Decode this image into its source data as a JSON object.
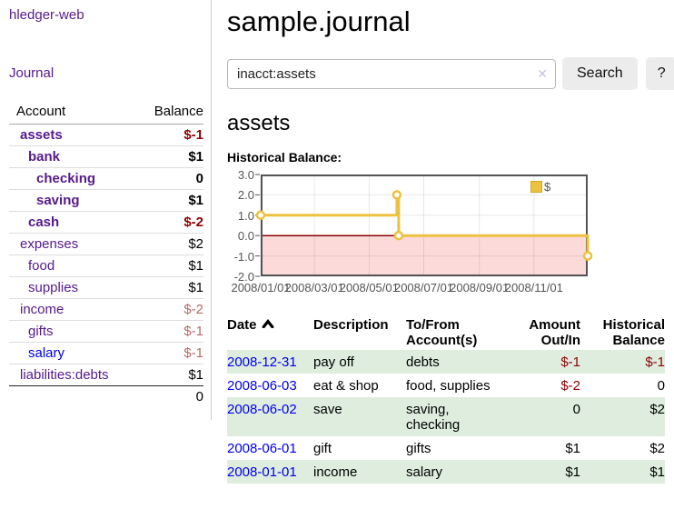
{
  "sidebar": {
    "app_title": "hledger-web",
    "journal_label": "Journal",
    "table": {
      "account_header": "Account",
      "balance_header": "Balance"
    },
    "accounts": [
      {
        "name": "assets",
        "level": 1,
        "balance": "$-1",
        "bold": true,
        "negative": "strong",
        "link_color": "purple"
      },
      {
        "name": "bank",
        "level": 2,
        "balance": "$1",
        "bold": true,
        "negative": "none",
        "link_color": "purple"
      },
      {
        "name": "checking",
        "level": 3,
        "balance": "0",
        "bold": true,
        "negative": "none",
        "link_color": "purple"
      },
      {
        "name": "saving",
        "level": 3,
        "balance": "$1",
        "bold": true,
        "negative": "none",
        "link_color": "purple"
      },
      {
        "name": "cash",
        "level": 2,
        "balance": "$-2",
        "bold": true,
        "negative": "strong",
        "link_color": "purple"
      },
      {
        "name": "expenses",
        "level": 1,
        "balance": "$2",
        "bold": false,
        "negative": "none",
        "link_color": "purple"
      },
      {
        "name": "food",
        "level": 2,
        "balance": "$1",
        "bold": false,
        "negative": "none",
        "link_color": "purple"
      },
      {
        "name": "supplies",
        "level": 2,
        "balance": "$1",
        "bold": false,
        "negative": "none",
        "link_color": "purple"
      },
      {
        "name": "income",
        "level": 1,
        "balance": "$-2",
        "bold": false,
        "negative": "muted",
        "link_color": "purple"
      },
      {
        "name": "gifts",
        "level": 2,
        "balance": "$-1",
        "bold": false,
        "negative": "muted",
        "link_color": "purple"
      },
      {
        "name": "salary",
        "level": 2,
        "balance": "$-1",
        "bold": false,
        "negative": "muted",
        "link_color": "blue"
      },
      {
        "name": "liabilities:debts",
        "level": 1,
        "balance": "$1",
        "bold": false,
        "negative": "none",
        "link_color": "purple"
      }
    ],
    "total_balance": "0"
  },
  "header": {
    "title": "sample.journal"
  },
  "search": {
    "value": "inacct:assets",
    "clear_icon": "✕",
    "button_label": "Search",
    "help_label": "?"
  },
  "account_page": {
    "heading": "assets",
    "chart_title": "Historical Balance:"
  },
  "chart_data": {
    "type": "line",
    "step": true,
    "title": "Historical Balance:",
    "x_unit": "days since 2008-01-01",
    "xlim": [
      0,
      365
    ],
    "ylim": [
      -2,
      3
    ],
    "grid": true,
    "legend_position": "top-right",
    "series": [
      {
        "name": "$",
        "color": "#edc240",
        "points": [
          {
            "date": "2008-01-01",
            "x": 0,
            "y": 1
          },
          {
            "date": "2008-06-01",
            "x": 152,
            "y": 2
          },
          {
            "date": "2008-06-03",
            "x": 154,
            "y": 0
          },
          {
            "date": "2008-12-31",
            "x": 365,
            "y": -1
          }
        ]
      }
    ],
    "x_ticks": [
      {
        "pos": 0,
        "label": "2008/01/01"
      },
      {
        "pos": 60,
        "label": "2008/03/01"
      },
      {
        "pos": 121,
        "label": "2008/05/01"
      },
      {
        "pos": 182,
        "label": "2008/07/01"
      },
      {
        "pos": 244,
        "label": "2008/09/01"
      },
      {
        "pos": 305,
        "label": "2008/11/01"
      }
    ],
    "y_ticks": [
      {
        "pos": 3,
        "label": "3.0"
      },
      {
        "pos": 2,
        "label": "2.0"
      },
      {
        "pos": 1,
        "label": "1.0"
      },
      {
        "pos": 0,
        "label": "0.0"
      },
      {
        "pos": -1,
        "label": "-1.0"
      },
      {
        "pos": -2,
        "label": "-2.0"
      }
    ],
    "negative_region_color": "#fcdada",
    "zero_line_color": "#8b0000"
  },
  "register": {
    "columns": {
      "date": "Date",
      "description": "Description",
      "account": "To/From Account(s)",
      "amount": "Amount Out/In",
      "balance": "Historical Balance"
    },
    "rows": [
      {
        "date": "2008-12-31",
        "description": "pay off",
        "account": "debts",
        "amount": "$-1",
        "amount_negative": true,
        "balance": "$-1",
        "balance_negative": true,
        "shaded": true
      },
      {
        "date": "2008-06-03",
        "description": "eat & shop",
        "account": "food, supplies",
        "amount": "$-2",
        "amount_negative": true,
        "balance": "0",
        "balance_negative": false,
        "shaded": false
      },
      {
        "date": "2008-06-02",
        "description": "save",
        "account": "saving, checking",
        "amount": "0",
        "amount_negative": false,
        "balance": "$2",
        "balance_negative": false,
        "shaded": true
      },
      {
        "date": "2008-06-01",
        "description": "gift",
        "account": "gifts",
        "amount": "$1",
        "amount_negative": false,
        "balance": "$2",
        "balance_negative": false,
        "shaded": false
      },
      {
        "date": "2008-01-01",
        "description": "income",
        "account": "salary",
        "amount": "$1",
        "amount_negative": false,
        "balance": "$1",
        "balance_negative": false,
        "shaded": true
      }
    ]
  },
  "colors": {
    "link_purple": "#551a8b",
    "link_blue": "#0000ee",
    "negative_strong": "#8b0000",
    "negative_muted": "#b36a6a",
    "row_shade_green": "#deedde",
    "series_yellow": "#edc240"
  }
}
